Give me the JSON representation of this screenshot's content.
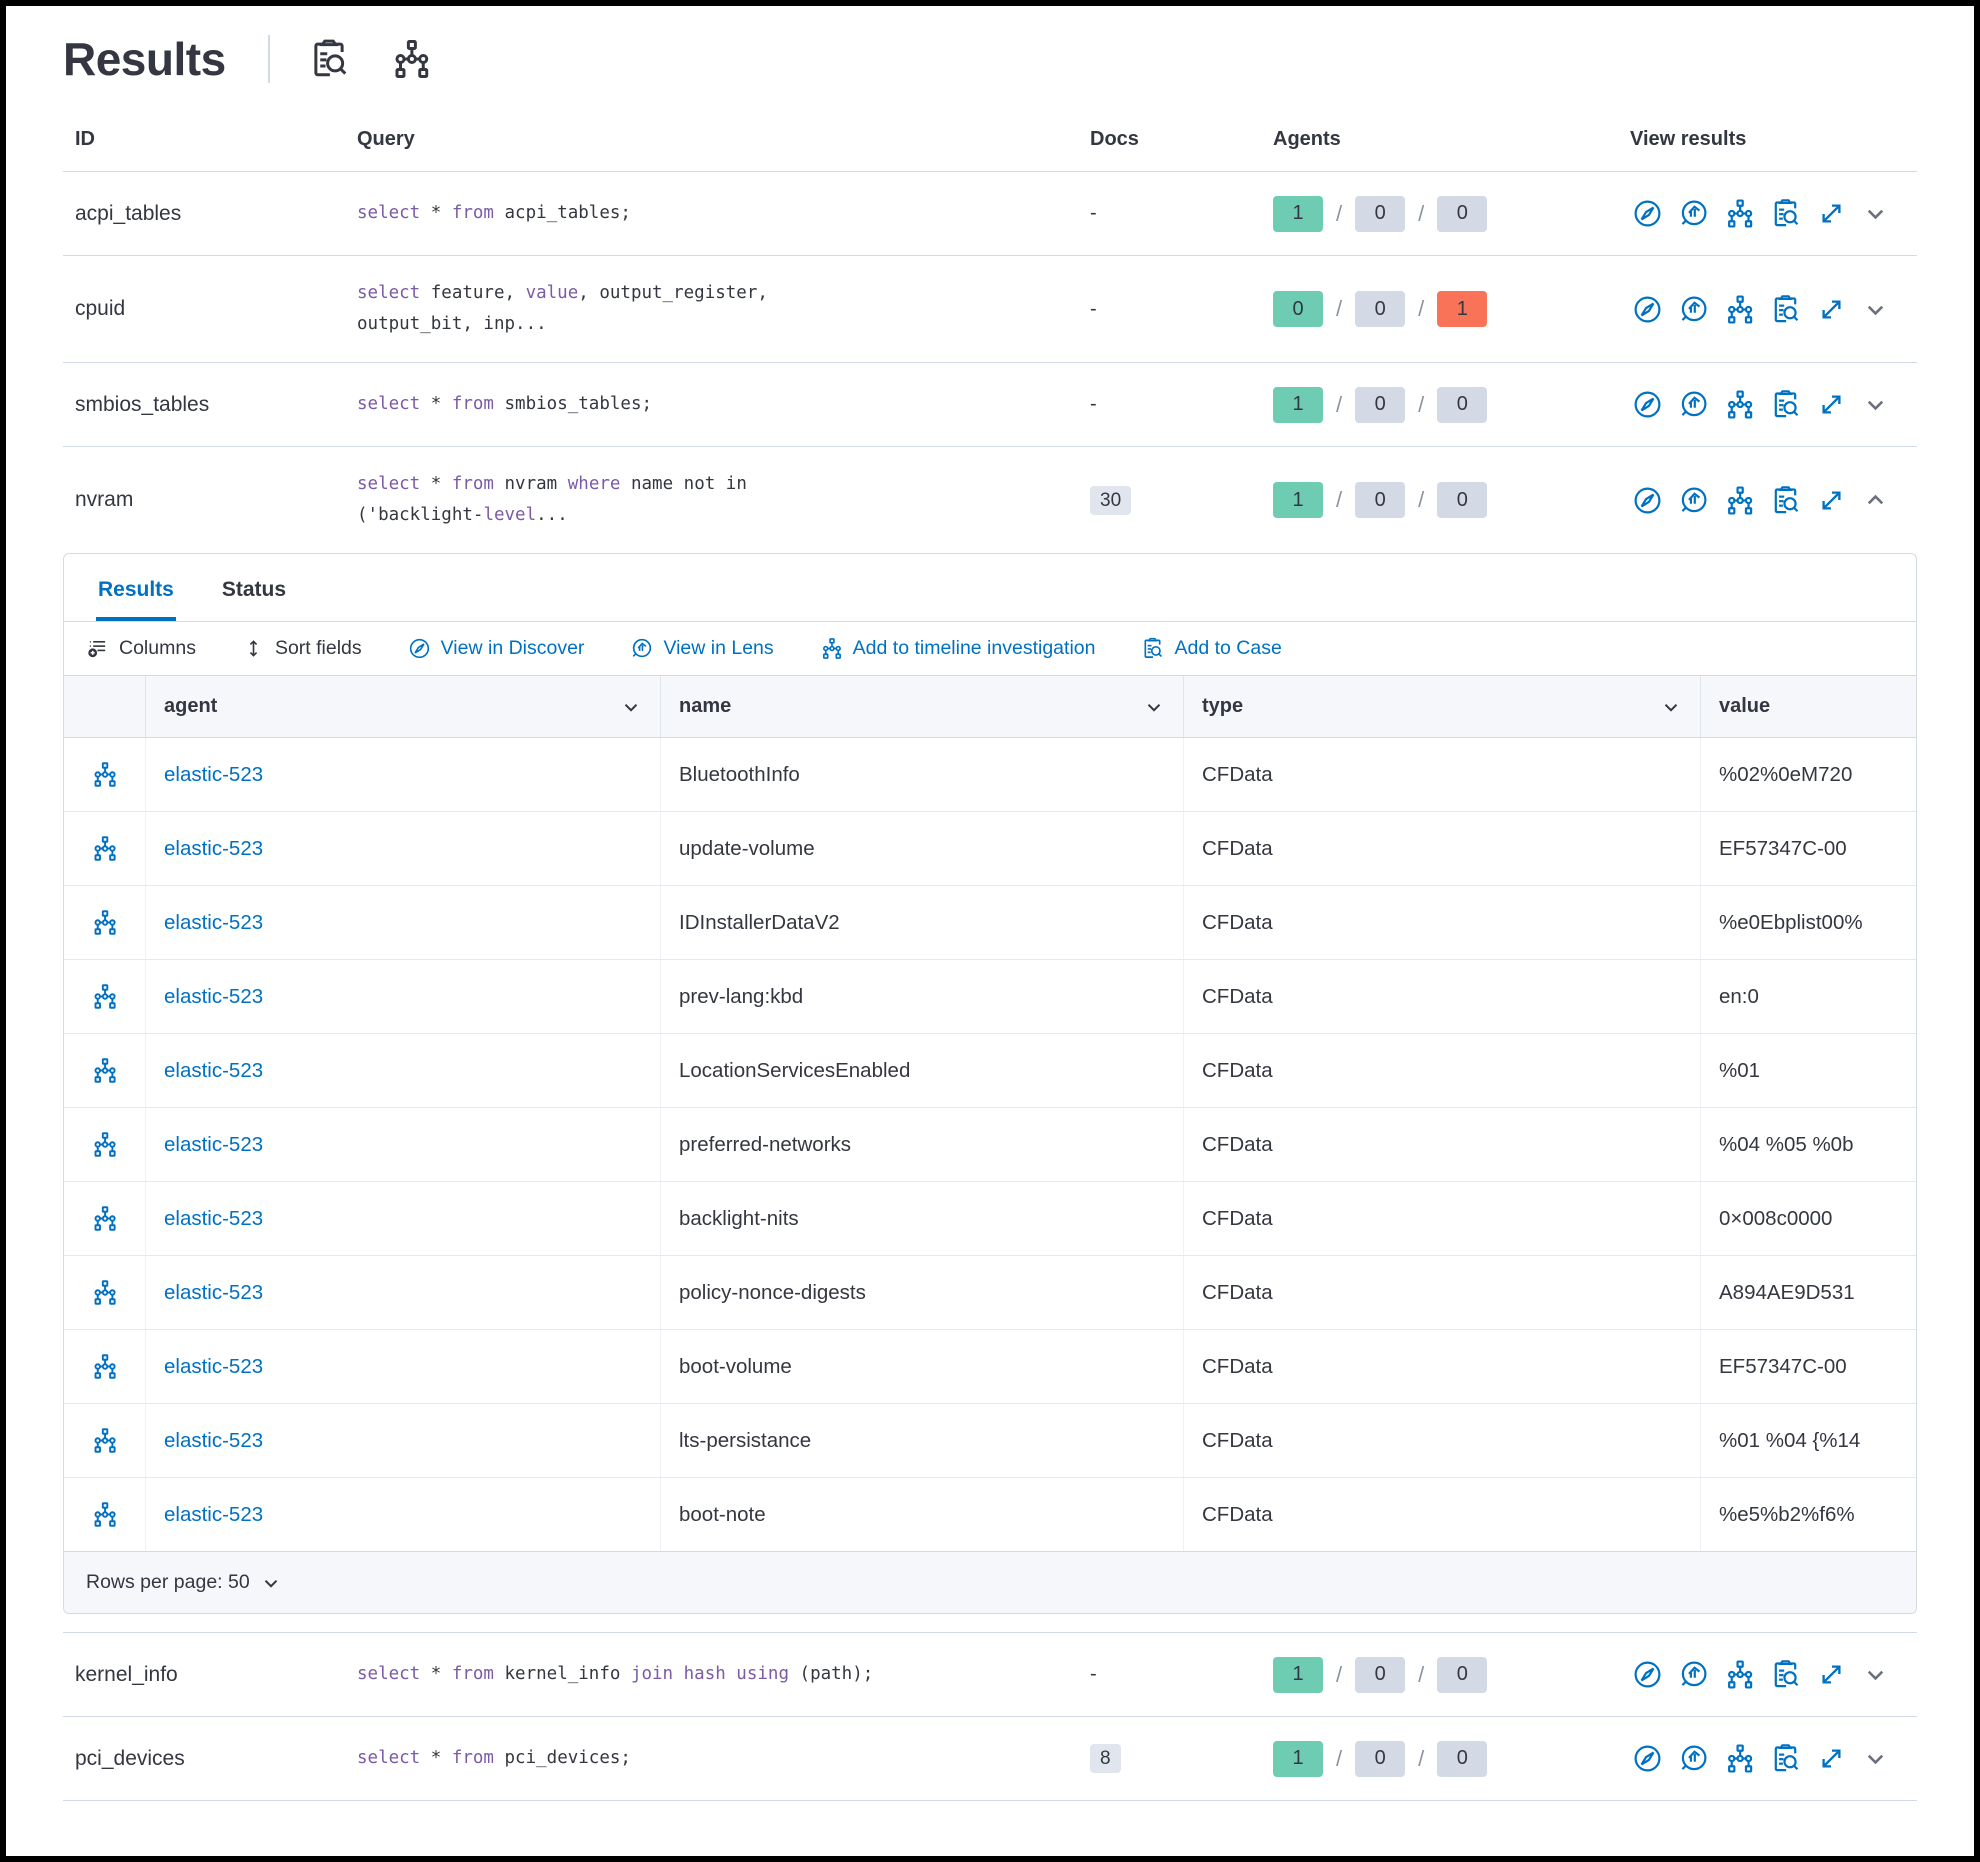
{
  "page": {
    "title": "Results"
  },
  "colors": {
    "primary_blue": "#0071c2",
    "success_badge": "#6dccb1",
    "default_badge": "#d3dae6",
    "danger_badge": "#f87358",
    "sql_keyword": "#7b5aa6",
    "text": "#343741",
    "border": "#d3dae6",
    "header_shade": "#f5f7fa"
  },
  "icons": {
    "inspect": "clipboard-with-magnifier",
    "timeline": "org-chart-nodes",
    "discover": "compass",
    "lens": "magnifier-chart",
    "popout": "diagonal-expand-arrow",
    "chevron_down": "chevron-down",
    "chevron_up": "chevron-up",
    "columns": "list-with-plus",
    "sort": "arrows-up-down"
  },
  "main_table": {
    "headers": {
      "id": "ID",
      "query": "Query",
      "docs": "Docs",
      "agents": "Agents",
      "view": "View results"
    },
    "rows_top": [
      {
        "id": "acpi_tables",
        "query_tokens": [
          {
            "t": "select",
            "k": 1
          },
          {
            "t": " * ",
            "k": 0
          },
          {
            "t": "from",
            "k": 1
          },
          {
            "t": " acpi_tables;",
            "k": 0
          }
        ],
        "docs": "-",
        "docs_class": "docs-plain",
        "agents": {
          "ok": "1",
          "pending": "0",
          "failed": "0"
        },
        "failed_class": "b-gray",
        "chevron": "down"
      },
      {
        "id": "cpuid",
        "query_tokens": [
          {
            "t": "select",
            "k": 1
          },
          {
            "t": " feature, ",
            "k": 0
          },
          {
            "t": "value",
            "k": 1
          },
          {
            "t": ", output_register,",
            "k": 0
          },
          {
            "br": 1
          },
          {
            "t": "output_bit, inp...",
            "k": 0
          }
        ],
        "docs": "-",
        "docs_class": "docs-plain",
        "agents": {
          "ok": "0",
          "pending": "0",
          "failed": "1"
        },
        "failed_class": "b-red",
        "chevron": "down"
      },
      {
        "id": "smbios_tables",
        "query_tokens": [
          {
            "t": "select",
            "k": 1
          },
          {
            "t": " * ",
            "k": 0
          },
          {
            "t": "from",
            "k": 1
          },
          {
            "t": " smbios_tables;",
            "k": 0
          }
        ],
        "docs": "-",
        "docs_class": "docs-plain",
        "agents": {
          "ok": "1",
          "pending": "0",
          "failed": "0"
        },
        "failed_class": "b-gray",
        "chevron": "down"
      },
      {
        "id": "nvram",
        "query_tokens": [
          {
            "t": "select",
            "k": 1
          },
          {
            "t": " * ",
            "k": 0
          },
          {
            "t": "from",
            "k": 1
          },
          {
            "t": " nvram ",
            "k": 0
          },
          {
            "t": "where",
            "k": 1
          },
          {
            "t": " name not in",
            "k": 0
          },
          {
            "br": 1
          },
          {
            "t": "('backlight-",
            "k": 0
          },
          {
            "t": "level",
            "k": 1
          },
          {
            "t": "...",
            "k": 0
          }
        ],
        "docs": "30",
        "docs_class": "docs-badge",
        "agents": {
          "ok": "1",
          "pending": "0",
          "failed": "0"
        },
        "failed_class": "b-gray",
        "chevron": "up"
      }
    ],
    "rows_bottom": [
      {
        "id": "kernel_info",
        "query_tokens": [
          {
            "t": "select",
            "k": 1
          },
          {
            "t": " * ",
            "k": 0
          },
          {
            "t": "from",
            "k": 1
          },
          {
            "t": " kernel_info ",
            "k": 0
          },
          {
            "t": "join hash using",
            "k": 1
          },
          {
            "t": " (path);",
            "k": 0
          }
        ],
        "docs": "-",
        "docs_class": "docs-plain",
        "agents": {
          "ok": "1",
          "pending": "0",
          "failed": "0"
        },
        "failed_class": "b-gray",
        "chevron": "down"
      },
      {
        "id": "pci_devices",
        "query_tokens": [
          {
            "t": "select",
            "k": 1
          },
          {
            "t": " * ",
            "k": 0
          },
          {
            "t": "from",
            "k": 1
          },
          {
            "t": " pci_devices;",
            "k": 0
          }
        ],
        "docs": "8",
        "docs_class": "docs-badge",
        "agents": {
          "ok": "1",
          "pending": "0",
          "failed": "0"
        },
        "failed_class": "b-gray",
        "chevron": "down"
      }
    ]
  },
  "expanded_panel": {
    "tabs": [
      {
        "label": "Results",
        "active": true
      },
      {
        "label": "Status",
        "active": false
      }
    ],
    "toolbar": {
      "columns": "Columns",
      "sort_fields": "Sort fields",
      "view_discover": "View in Discover",
      "view_lens": "View in Lens",
      "add_timeline": "Add to timeline investigation",
      "add_case": "Add to Case"
    },
    "grid": {
      "headers": {
        "agent": "agent",
        "name": "name",
        "type": "type",
        "value": "value"
      },
      "rows": [
        {
          "agent": "elastic-523",
          "name": "BluetoothInfo",
          "type": "CFData",
          "value": "%02%0eM720"
        },
        {
          "agent": "elastic-523",
          "name": "update-volume",
          "type": "CFData",
          "value": "EF57347C-00"
        },
        {
          "agent": "elastic-523",
          "name": "IDInstallerDataV2",
          "type": "CFData",
          "value": "%e0Ebplist00%"
        },
        {
          "agent": "elastic-523",
          "name": "prev-lang:kbd",
          "type": "CFData",
          "value": "en:0"
        },
        {
          "agent": "elastic-523",
          "name": "LocationServicesEnabled",
          "type": "CFData",
          "value": "%01"
        },
        {
          "agent": "elastic-523",
          "name": "preferred-networks",
          "type": "CFData",
          "value": "%04 %05 %0b"
        },
        {
          "agent": "elastic-523",
          "name": "backlight-nits",
          "type": "CFData",
          "value": "0×008c0000"
        },
        {
          "agent": "elastic-523",
          "name": "policy-nonce-digests",
          "type": "CFData",
          "value": "A894AE9D531"
        },
        {
          "agent": "elastic-523",
          "name": "boot-volume",
          "type": "CFData",
          "value": "EF57347C-00"
        },
        {
          "agent": "elastic-523",
          "name": "lts-persistance",
          "type": "CFData",
          "value": "%01 %04 {%14"
        },
        {
          "agent": "elastic-523",
          "name": "boot-note",
          "type": "CFData",
          "value": "%e5%b2%f6%"
        }
      ]
    },
    "rows_per_page": "Rows per page: 50"
  }
}
